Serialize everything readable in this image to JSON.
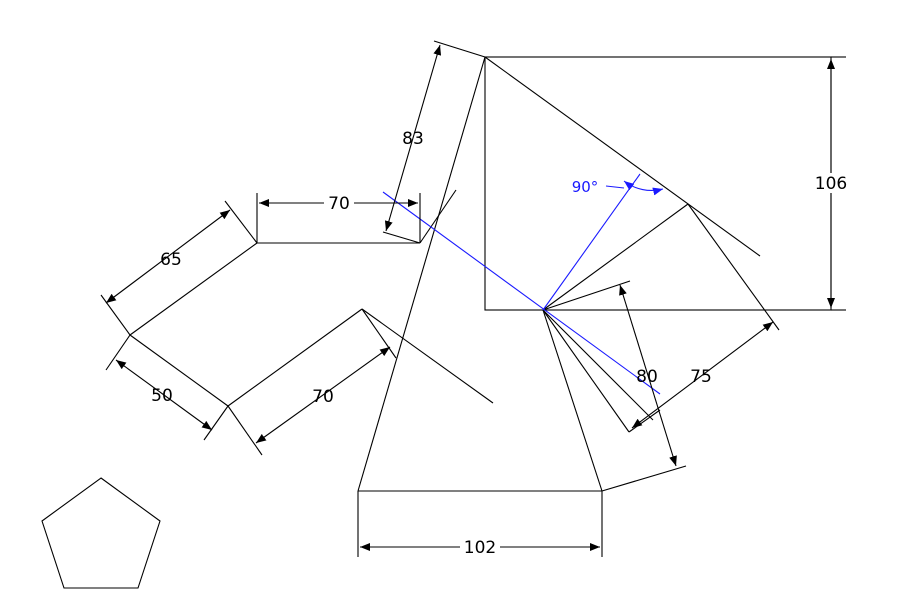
{
  "dimensions": {
    "d_70_top": "70",
    "d_83": "83",
    "d_65": "65",
    "d_50": "50",
    "d_70_bottom": "70",
    "d_106": "106",
    "d_80": "80",
    "d_75": "75",
    "d_102": "102"
  },
  "angle": {
    "right_angle_label": "90°"
  },
  "colors": {
    "geometry": "#000000",
    "construction": "#1a1aff",
    "background": "#ffffff"
  }
}
